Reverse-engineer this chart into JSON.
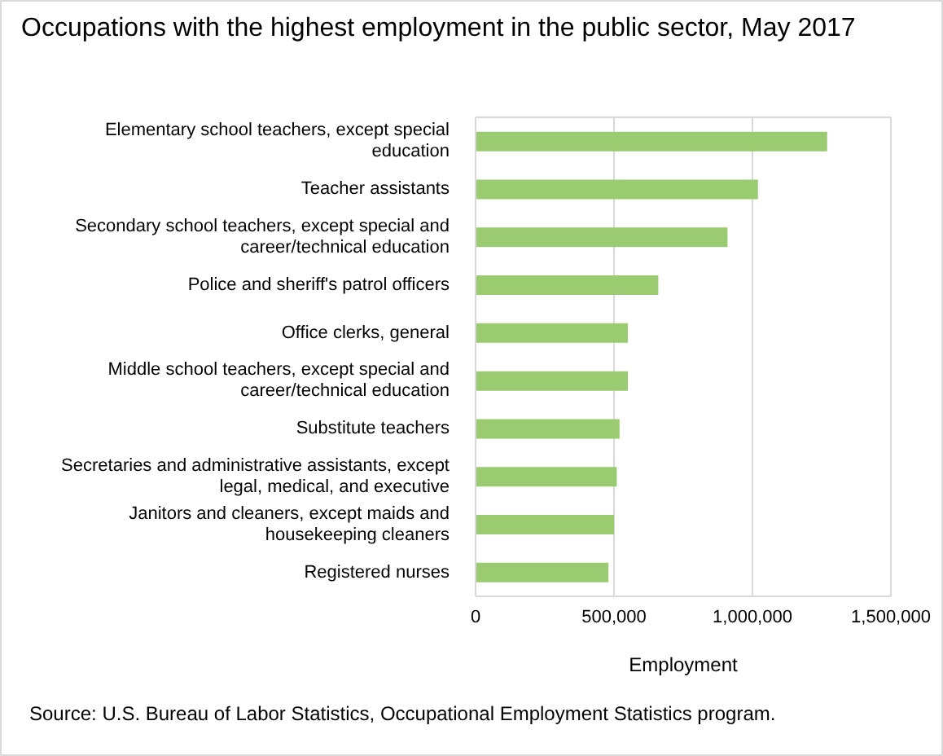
{
  "chart_data": {
    "type": "bar",
    "orientation": "horizontal",
    "title": "Occupations with the highest employment in the public sector, May 2017",
    "categories": [
      "Elementary school teachers, except special education",
      "Teacher assistants",
      "Secondary school teachers, except special and career/technical education",
      "Police and sheriff's patrol officers",
      "Office clerks, general",
      "Middle school teachers, except special and career/technical education",
      "Substitute teachers",
      "Secretaries and administrative assistants, except legal, medical, and executive",
      "Janitors and cleaners, except maids and housekeeping cleaners",
      "Registered nurses"
    ],
    "values": [
      1270000,
      1020000,
      910000,
      660000,
      550000,
      550000,
      520000,
      510000,
      500000,
      480000
    ],
    "color": "#9bcb71",
    "xlim": [
      0,
      1500000
    ],
    "xticks": [
      {
        "value": 0,
        "label": "0"
      },
      {
        "value": 500000,
        "label": "500,000"
      },
      {
        "value": 1000000,
        "label": "1,000,000"
      },
      {
        "value": 1500000,
        "label": "1,500,000"
      }
    ],
    "xlabel": "Employment",
    "grid": "x",
    "annotations": [
      "Source: U.S. Bureau of Labor Statistics, Occupational Employment Statistics program."
    ]
  }
}
